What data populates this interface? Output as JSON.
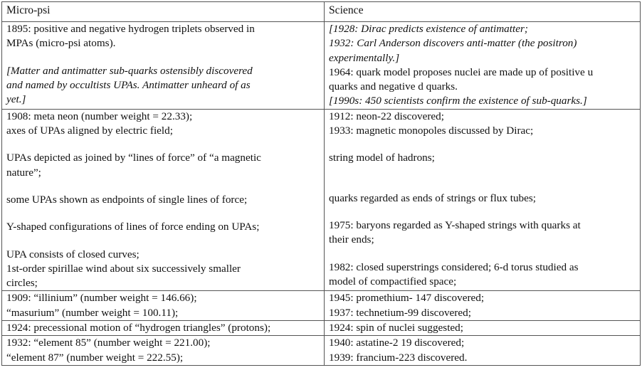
{
  "table": {
    "headers": {
      "micro_psi": "Micro-psi",
      "science": "Science"
    },
    "row1": {
      "left_line1": "1895: positive and negative hydrogen triplets observed in",
      "left_line2": "MPAs (micro-psi atoms).",
      "left_note_line1": "[Matter and antimatter sub-quarks ostensibly discovered",
      "left_note_line2": "and named by occultists UPAs. Antimatter unheard of as",
      "left_note_line3": "yet.]",
      "right_note1_line1": "[1928: Dirac predicts existence of antimatter;",
      "right_note1_line2": "1932: Carl Anderson discovers anti-matter (the positron)",
      "right_note1_line3": "experimentally.]",
      "right_line1": "1964: quark model proposes nuclei are made up of positive u",
      "right_line2": "quarks and negative d quarks.",
      "right_note2": "[1990s: 450 scientists confirm the existence of sub-quarks.]"
    },
    "row2": {
      "left_a1": "1908: meta neon (number weight = 22.33);",
      "left_a2": "axes of UPAs aligned by electric field;",
      "left_b1": "UPAs depicted as joined by “lines of force” of “a magnetic",
      "left_b2": "nature”;",
      "left_c1": "some UPAs shown as endpoints of single lines of force;",
      "left_d1": "Y-shaped configurations of lines of force ending on UPAs;",
      "left_e1": "UPA consists of closed curves;",
      "left_e2": "1st-order spirillae wind about six successively smaller",
      "left_e3": "circles;",
      "right_a1": "1912: neon-22 discovered;",
      "right_a2": "1933: magnetic monopoles discussed by Dirac;",
      "right_b1": "string model of hadrons;",
      "right_c1": "quarks regarded as ends of strings or flux tubes;",
      "right_d1": "1975: baryons regarded as Y-shaped strings with quarks at",
      "right_d2": "their ends;",
      "right_e1": "1982: closed superstrings considered; 6-d torus studied as",
      "right_e2": "model of compactified space;"
    },
    "row3": {
      "left_line1": "1909: “illinium” (number weight = 146.66);",
      "left_line2": "“masurium” (number weight = 100.11);",
      "right_line1": "1945: promethium- 147 discovered;",
      "right_line2": "1937: technetium-99 discovered;"
    },
    "row4": {
      "left_line1": "1924: precessional motion of “hydrogen triangles” (protons);",
      "right_line1": "1924: spin of nuclei suggested;"
    },
    "row5": {
      "left_line1": "1932: “element 85” (number weight = 221.00);",
      "left_line2": "“element 87” (number weight = 222.55);",
      "right_line1": "1940: astatine-2 19 discovered;",
      "right_line2": "1939: francium-223 discovered."
    }
  }
}
